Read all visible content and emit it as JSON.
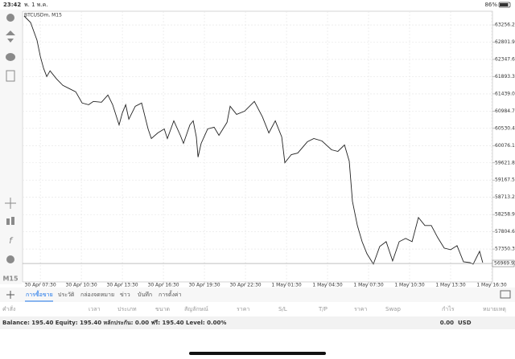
{
  "status_bar": {
    "time": "23:42",
    "date": "พ. 1 พ.ค.",
    "battery": "86%"
  },
  "chart": {
    "type": "line",
    "symbol_label": "BTCUSDm, M15",
    "color": "#222222",
    "grid": true,
    "x": [
      6.32,
      6.79,
      7.26,
      7.5,
      7.74,
      7.97,
      8.21,
      8.68,
      9.15,
      9.62,
      10.09,
      10.56,
      11.03,
      11.38,
      11.97,
      12.44,
      12.79,
      13.26,
      13.5,
      13.74,
      13.97,
      14.44,
      14.91,
      15.38,
      15.62,
      16.09,
      16.56,
      16.79,
      17.26,
      17.74,
      17.97,
      18.44,
      18.68,
      18.91,
      19.03,
      19.26,
      19.74,
      20.21,
      20.56,
      21.15,
      21.38,
      21.85,
      22.44,
      23.15,
      23.74,
      24.21,
      24.68,
      25.15,
      25.38,
      25.85,
      26.32,
      27.03,
      27.5,
      28.09,
      28.79,
      29.26,
      29.74,
      30.09,
      30.32,
      30.68,
      31.03,
      31.38,
      31.85,
      32.32,
      32.79,
      33.26,
      33.74,
      34.21,
      34.68,
      35.15,
      35.62,
      36.09,
      36.56,
      37.03,
      37.5,
      37.97,
      38.44,
      38.91,
      39.15,
      39.62,
      39.85
    ],
    "values": [
      63490,
      63320,
      62853,
      62428,
      62110,
      61897,
      62046,
      61834,
      61664,
      61579,
      61494,
      61197,
      61154,
      61239,
      61218,
      61409,
      61154,
      60623,
      60942,
      61154,
      60772,
      61112,
      61197,
      60517,
      60263,
      60411,
      60517,
      60263,
      60730,
      60347,
      60135,
      60623,
      60730,
      60305,
      59774,
      60135,
      60517,
      60560,
      60347,
      60687,
      61112,
      60899,
      60984,
      61239,
      60836,
      60411,
      60730,
      60305,
      59626,
      59838,
      59880,
      60178,
      60263,
      60199,
      59965,
      59923,
      60093,
      59668,
      58607,
      57970,
      57545,
      57227,
      56951,
      57418,
      57545,
      57036,
      57545,
      57630,
      57545,
      58182,
      57970,
      57970,
      57651,
      57375,
      57333,
      57439,
      57014,
      56993,
      56951,
      57290,
      56993
    ],
    "xlim": [
      6.2,
      40.56
    ],
    "ylim": [
      56484,
      63617
    ],
    "xticks": [
      {
        "value": 7.5,
        "label": "30 Apr 07:30"
      },
      {
        "value": 10.5,
        "label": "30 Apr 10:30"
      },
      {
        "value": 13.5,
        "label": "30 Apr 13:30"
      },
      {
        "value": 16.5,
        "label": "30 Apr 16:30"
      },
      {
        "value": 19.5,
        "label": "30 Apr 19:30"
      },
      {
        "value": 22.5,
        "label": "30 Apr 22:30"
      },
      {
        "value": 25.5,
        "label": "1 May 01:30"
      },
      {
        "value": 28.5,
        "label": "1 May 04:30"
      },
      {
        "value": 31.5,
        "label": "1 May 07:30"
      },
      {
        "value": 34.5,
        "label": "1 May 10:30"
      },
      {
        "value": 37.5,
        "label": "1 May 13:30"
      },
      {
        "value": 40.5,
        "label": "1 May 16:30"
      }
    ],
    "yticks": [
      {
        "value": 63256.2,
        "label": "63256.20"
      },
      {
        "value": 62801.9,
        "label": "62801.90"
      },
      {
        "value": 62347.6,
        "label": "62347.60"
      },
      {
        "value": 61893.3,
        "label": "61893.30"
      },
      {
        "value": 61439,
        "label": "61439.00"
      },
      {
        "value": 60984.7,
        "label": "60984.70"
      },
      {
        "value": 60530.4,
        "label": "60530.40"
      },
      {
        "value": 60076.1,
        "label": "60076.10"
      },
      {
        "value": 59621.8,
        "label": "59621.80"
      },
      {
        "value": 59167.5,
        "label": "59167.50"
      },
      {
        "value": 58713.2,
        "label": "58713.20"
      },
      {
        "value": 58258.9,
        "label": "58258.90"
      },
      {
        "value": 57804.6,
        "label": "57804.60"
      },
      {
        "value": 57350.3,
        "label": "57350.30"
      }
    ],
    "bid_line": 56969.93
  },
  "timeframe": "M15",
  "tabs": [
    "การซื้อขาย",
    "ประวัติ",
    "กล่องจดหมาย",
    "ข่าว",
    "บันทึก",
    "การตั้งค่า"
  ],
  "columns": [
    "คำสั่ง",
    "เวลา",
    "ประเภท",
    "ขนาด",
    "สัญลักษณ์",
    "ราคา",
    "S/L",
    "T/P",
    "ราคา",
    "Swap",
    "กำไร",
    "หมายเหตุ"
  ],
  "balance_row": {
    "text": "Balance: 195.40 Equity: 195.40 หลักประกัน: 0.00 ฟรี: 195.40 Level: 0.00%",
    "profit": "0.00",
    "currency": "USD"
  }
}
